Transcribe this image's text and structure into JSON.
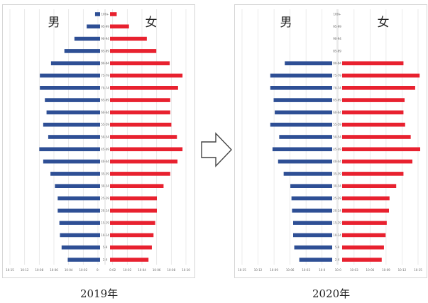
{
  "arrow_icon": "right-arrow-outline-icon",
  "colors": {
    "male": "#2e4f95",
    "female": "#e8212f",
    "grid": "#e2e2e2"
  },
  "chart_data": [
    {
      "type": "bar",
      "subtype": "population-pyramid",
      "caption": "2019年",
      "left_label": "男",
      "right_label": "女",
      "categories": [
        "2-4",
        "5-9",
        "10-14",
        "15-19",
        "20-24",
        "25-29",
        "30-34",
        "35-39",
        "40-44",
        "45-49",
        "50-54",
        "55-59",
        "60-64",
        "65-69",
        "70-74",
        "75-79",
        "80-84",
        "85-89",
        "90-94",
        "95-99",
        "100+"
      ],
      "series": [
        {
          "name": "男",
          "values": [
            5.8,
            6.9,
            7.2,
            7.3,
            7.6,
            7.6,
            8.1,
            8.9,
            10.2,
            10.9,
            9.3,
            10.2,
            9.6,
            9.9,
            10.8,
            10.8,
            8.8,
            6.4,
            4.6,
            2.4,
            0.9
          ]
        },
        {
          "name": "女",
          "values": [
            6.9,
            7.5,
            7.8,
            8.1,
            8.4,
            8.4,
            9.6,
            10.8,
            12.1,
            13.0,
            12.0,
            11.0,
            10.8,
            10.8,
            12.2,
            13.0,
            10.7,
            8.3,
            6.6,
            3.4,
            1.2
          ]
        }
      ],
      "x_tick_labels": [
        "10-15",
        "10-12",
        "10-08",
        "10-06",
        "10-04",
        "10-02",
        "0-",
        "0-02",
        "10-02",
        "10-04",
        "10-06",
        "10-08",
        "10-10"
      ],
      "grid": true,
      "legend": "none"
    },
    {
      "type": "bar",
      "subtype": "population-pyramid",
      "caption": "2020年",
      "left_label": "男",
      "right_label": "女",
      "categories": [
        "2-4",
        "5-9",
        "10-14",
        "15-19",
        "20-24",
        "25-29",
        "30-34",
        "35-39",
        "40-44",
        "45-49",
        "50-54",
        "55-59",
        "60-64",
        "65-69",
        "70-74",
        "75-79",
        "80-84",
        "85-89",
        "90-94",
        "95-99",
        "100+"
      ],
      "series": [
        {
          "name": "男",
          "values": [
            5.9,
            6.8,
            7.0,
            7.0,
            7.2,
            7.3,
            7.5,
            8.7,
            9.7,
            10.7,
            9.5,
            11.1,
            10.3,
            10.5,
            11.1,
            11.1,
            8.5,
            0,
            0,
            0,
            0
          ]
        },
        {
          "name": "女",
          "values": [
            7.1,
            7.5,
            7.8,
            8.0,
            8.4,
            8.5,
            9.7,
            11.0,
            12.6,
            14.0,
            12.3,
            11.3,
            11.0,
            11.2,
            13.1,
            13.9,
            11.0,
            0,
            0,
            0,
            0
          ]
        }
      ],
      "x_tick_labels": [
        "10-15",
        "10-12",
        "10-09",
        "10-06",
        "10-03",
        "10-0",
        "10-0",
        "10-03",
        "10-06",
        "10-09",
        "10-12",
        "10-15"
      ],
      "grid": true,
      "legend": "none"
    }
  ]
}
